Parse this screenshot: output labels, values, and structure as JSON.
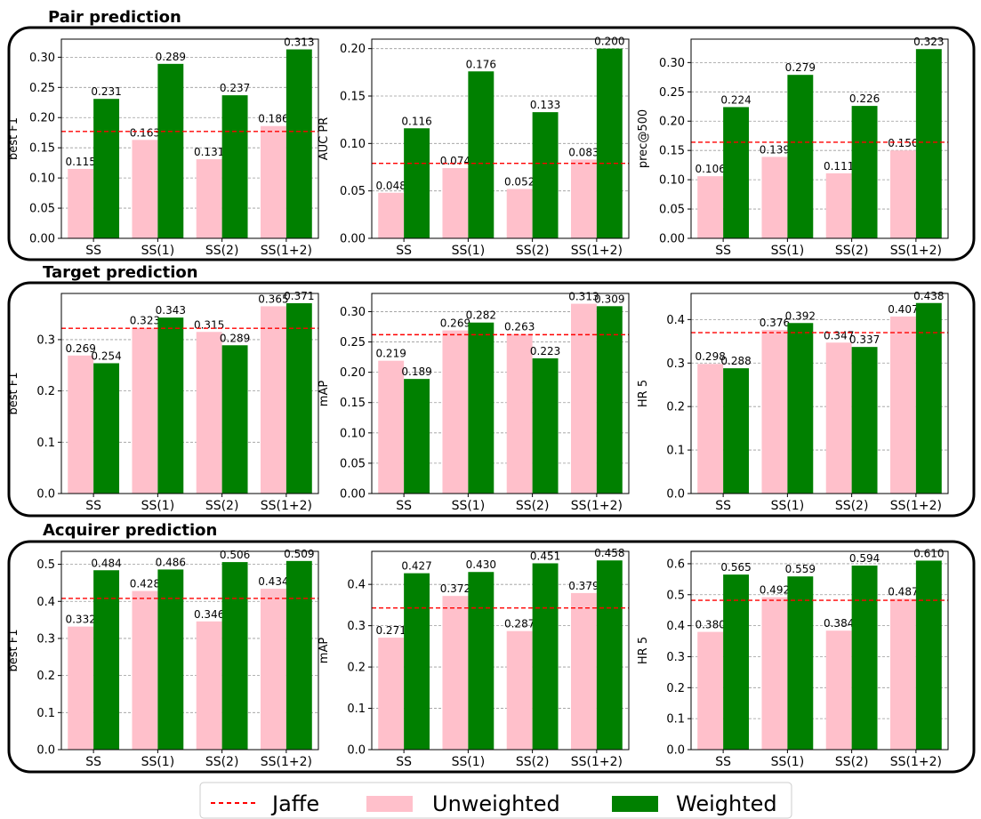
{
  "sections": [
    {
      "title": "Pair prediction"
    },
    {
      "title": "Target prediction"
    },
    {
      "title": "Acquirer prediction"
    }
  ],
  "legend": {
    "jaffe": "Jaffe",
    "unweighted": "Unweighted",
    "weighted": "Weighted"
  },
  "colors": {
    "unweighted": "#ffc0cb",
    "weighted": "#008000",
    "jaffe": "#ff0000",
    "grid": "#9a9a9a"
  },
  "chart_data": [
    {
      "type": "bar",
      "section": "Pair prediction",
      "categories": [
        "SS",
        "SS(1)",
        "SS(2)",
        "SS(1+2)"
      ],
      "ylabel": "best F1",
      "ylim": [
        0,
        0.33
      ],
      "yticks": [
        "0.00",
        "0.05",
        "0.10",
        "0.15",
        "0.20",
        "0.25",
        "0.30"
      ],
      "ytick_values": [
        0,
        0.05,
        0.1,
        0.15,
        0.2,
        0.25,
        0.3
      ],
      "series": [
        {
          "name": "Unweighted",
          "values": [
            0.115,
            0.163,
            0.131,
            0.186
          ],
          "labels": [
            "0.115",
            "0.163",
            "0.131",
            "0.186"
          ]
        },
        {
          "name": "Weighted",
          "values": [
            0.231,
            0.289,
            0.237,
            0.313
          ],
          "labels": [
            "0.231",
            "0.289",
            "0.237",
            "0.313"
          ]
        }
      ],
      "jaffe": 0.177,
      "grid": true
    },
    {
      "type": "bar",
      "section": "Pair prediction",
      "categories": [
        "SS",
        "SS(1)",
        "SS(2)",
        "SS(1+2)"
      ],
      "ylabel": "AUC PR",
      "ylim": [
        0,
        0.21
      ],
      "yticks": [
        "0.00",
        "0.05",
        "0.10",
        "0.15",
        "0.20"
      ],
      "ytick_values": [
        0,
        0.05,
        0.1,
        0.15,
        0.2
      ],
      "series": [
        {
          "name": "Unweighted",
          "values": [
            0.048,
            0.074,
            0.052,
            0.083
          ],
          "labels": [
            "0.048",
            "0.074",
            "0.052",
            "0.083"
          ]
        },
        {
          "name": "Weighted",
          "values": [
            0.116,
            0.176,
            0.133,
            0.2
          ],
          "labels": [
            "0.116",
            "0.176",
            "0.133",
            "0.200"
          ]
        }
      ],
      "jaffe": 0.079,
      "grid": true
    },
    {
      "type": "bar",
      "section": "Pair prediction",
      "categories": [
        "SS",
        "SS(1)",
        "SS(2)",
        "SS(1+2)"
      ],
      "ylabel": "prec@500",
      "ylim": [
        0,
        0.34
      ],
      "yticks": [
        "0.00",
        "0.05",
        "0.10",
        "0.15",
        "0.20",
        "0.25",
        "0.30"
      ],
      "ytick_values": [
        0,
        0.05,
        0.1,
        0.15,
        0.2,
        0.25,
        0.3
      ],
      "series": [
        {
          "name": "Unweighted",
          "values": [
            0.106,
            0.139,
            0.111,
            0.15
          ],
          "labels": [
            "0.106",
            "0.139",
            "0.111",
            "0.150"
          ]
        },
        {
          "name": "Weighted",
          "values": [
            0.224,
            0.279,
            0.226,
            0.323
          ],
          "labels": [
            "0.224",
            "0.279",
            "0.226",
            "0.323"
          ]
        }
      ],
      "jaffe": 0.164,
      "grid": true
    },
    {
      "type": "bar",
      "section": "Target prediction",
      "categories": [
        "SS",
        "SS(1)",
        "SS(2)",
        "SS(1+2)"
      ],
      "ylabel": "best F1",
      "ylim": [
        0,
        0.39
      ],
      "yticks": [
        "0.0",
        "0.1",
        "0.2",
        "0.3"
      ],
      "ytick_values": [
        0,
        0.1,
        0.2,
        0.3
      ],
      "series": [
        {
          "name": "Unweighted",
          "values": [
            0.269,
            0.323,
            0.315,
            0.365
          ],
          "labels": [
            "0.269",
            "0.323",
            "0.315",
            "0.365"
          ]
        },
        {
          "name": "Weighted",
          "values": [
            0.254,
            0.343,
            0.289,
            0.371
          ],
          "labels": [
            "0.254",
            "0.343",
            "0.289",
            "0.371"
          ]
        }
      ],
      "jaffe": 0.322,
      "grid": true
    },
    {
      "type": "bar",
      "section": "Target prediction",
      "categories": [
        "SS",
        "SS(1)",
        "SS(2)",
        "SS(1+2)"
      ],
      "ylabel": "mAP",
      "ylim": [
        0,
        0.33
      ],
      "yticks": [
        "0.00",
        "0.05",
        "0.10",
        "0.15",
        "0.20",
        "0.25",
        "0.30"
      ],
      "ytick_values": [
        0,
        0.05,
        0.1,
        0.15,
        0.2,
        0.25,
        0.3
      ],
      "series": [
        {
          "name": "Unweighted",
          "values": [
            0.219,
            0.269,
            0.263,
            0.313
          ],
          "labels": [
            "0.219",
            "0.269",
            "0.263",
            "0.313"
          ]
        },
        {
          "name": "Weighted",
          "values": [
            0.189,
            0.282,
            0.223,
            0.309
          ],
          "labels": [
            "0.189",
            "0.282",
            "0.223",
            "0.309"
          ]
        }
      ],
      "jaffe": 0.262,
      "grid": true
    },
    {
      "type": "bar",
      "section": "Target prediction",
      "categories": [
        "SS",
        "SS(1)",
        "SS(2)",
        "SS(1+2)"
      ],
      "ylabel": "HR 5",
      "ylim": [
        0,
        0.46
      ],
      "yticks": [
        "0.0",
        "0.1",
        "0.2",
        "0.3",
        "0.4"
      ],
      "ytick_values": [
        0,
        0.1,
        0.2,
        0.3,
        0.4
      ],
      "series": [
        {
          "name": "Unweighted",
          "values": [
            0.298,
            0.376,
            0.347,
            0.407
          ],
          "labels": [
            "0.298",
            "0.376",
            "0.347",
            "0.407"
          ]
        },
        {
          "name": "Weighted",
          "values": [
            0.288,
            0.392,
            0.337,
            0.438
          ],
          "labels": [
            "0.288",
            "0.392",
            "0.337",
            "0.438"
          ]
        }
      ],
      "jaffe": 0.37,
      "grid": true
    },
    {
      "type": "bar",
      "section": "Acquirer prediction",
      "categories": [
        "SS",
        "SS(1)",
        "SS(2)",
        "SS(1+2)"
      ],
      "ylabel": "best F1",
      "ylim": [
        0,
        0.535
      ],
      "yticks": [
        "0.0",
        "0.1",
        "0.2",
        "0.3",
        "0.4",
        "0.5"
      ],
      "ytick_values": [
        0,
        0.1,
        0.2,
        0.3,
        0.4,
        0.5
      ],
      "series": [
        {
          "name": "Unweighted",
          "values": [
            0.332,
            0.428,
            0.346,
            0.434
          ],
          "labels": [
            "0.332",
            "0.428",
            "0.346",
            "0.434"
          ]
        },
        {
          "name": "Weighted",
          "values": [
            0.484,
            0.486,
            0.506,
            0.509
          ],
          "labels": [
            "0.484",
            "0.486",
            "0.506",
            "0.509"
          ]
        }
      ],
      "jaffe": 0.408,
      "grid": true
    },
    {
      "type": "bar",
      "section": "Acquirer prediction",
      "categories": [
        "SS",
        "SS(1)",
        "SS(2)",
        "SS(1+2)"
      ],
      "ylabel": "mAP",
      "ylim": [
        0,
        0.48
      ],
      "yticks": [
        "0.0",
        "0.1",
        "0.2",
        "0.3",
        "0.4"
      ],
      "ytick_values": [
        0,
        0.1,
        0.2,
        0.3,
        0.4
      ],
      "series": [
        {
          "name": "Unweighted",
          "values": [
            0.271,
            0.372,
            0.287,
            0.379
          ],
          "labels": [
            "0.271",
            "0.372",
            "0.287",
            "0.379"
          ]
        },
        {
          "name": "Weighted",
          "values": [
            0.427,
            0.43,
            0.451,
            0.458
          ],
          "labels": [
            "0.427",
            "0.430",
            "0.451",
            "0.458"
          ]
        }
      ],
      "jaffe": 0.343,
      "grid": true
    },
    {
      "type": "bar",
      "section": "Acquirer prediction",
      "categories": [
        "SS",
        "SS(1)",
        "SS(2)",
        "SS(1+2)"
      ],
      "ylabel": "HR 5",
      "ylim": [
        0,
        0.64
      ],
      "yticks": [
        "0.0",
        "0.1",
        "0.2",
        "0.3",
        "0.4",
        "0.5",
        "0.6"
      ],
      "ytick_values": [
        0,
        0.1,
        0.2,
        0.3,
        0.4,
        0.5,
        0.6
      ],
      "series": [
        {
          "name": "Unweighted",
          "values": [
            0.38,
            0.492,
            0.384,
            0.487
          ],
          "labels": [
            "0.380",
            "0.492",
            "0.384",
            "0.487"
          ]
        },
        {
          "name": "Weighted",
          "values": [
            0.565,
            0.559,
            0.594,
            0.61
          ],
          "labels": [
            "0.565",
            "0.559",
            "0.594",
            "0.610"
          ]
        }
      ],
      "jaffe": 0.482,
      "grid": true
    }
  ]
}
